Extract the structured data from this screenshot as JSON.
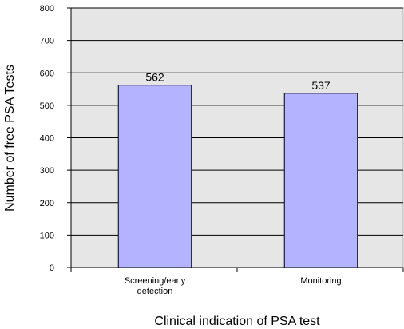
{
  "chart_data": {
    "type": "bar",
    "categories": [
      "Screening/early detection",
      "Monitoring"
    ],
    "category_lines": [
      [
        "Screening/early",
        "detection"
      ],
      [
        "Monitoring"
      ]
    ],
    "values": [
      562,
      537
    ],
    "data_labels": [
      "562",
      "537"
    ],
    "title": "",
    "xlabel": "Clinical indication of PSA test",
    "ylabel": "Number of free PSA Tests",
    "ylim": [
      0,
      800
    ],
    "yticks": [
      0,
      100,
      200,
      300,
      400,
      500,
      600,
      700,
      800
    ],
    "grid": true,
    "legend": "none",
    "colors": {
      "bar_fill": "#b3b3ff",
      "bar_stroke": "#000000",
      "plot_background": "#e6e6e6",
      "grid": "#000000"
    }
  }
}
